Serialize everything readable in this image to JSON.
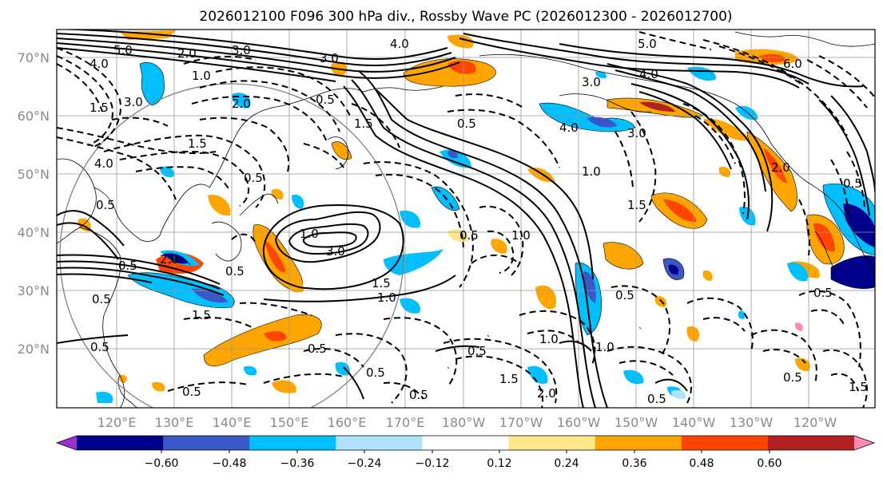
{
  "title": "2026012100 F096 300 hPa div., Rossby Wave PC (2026012300 - 2026012700)",
  "map": {
    "lat_ticks": [
      "70°N",
      "60°N",
      "50°N",
      "40°N",
      "30°N",
      "20°N"
    ],
    "lon_ticks": [
      "120°E",
      "130°E",
      "140°E",
      "150°E",
      "160°E",
      "170°E",
      "180°W",
      "170°W",
      "160°W",
      "150°W",
      "140°W",
      "130°W",
      "120°W"
    ],
    "contour_labels": [
      "5.0",
      "4.0",
      "3.0",
      "2.0",
      "1.0",
      "3.0",
      "4.0",
      "5.0",
      "3.0",
      "4.0",
      "6.0",
      "1.5",
      "4.0",
      "3.0",
      "1.5",
      "2.0",
      "0.5",
      "1.5",
      "4.0",
      "3.0",
      "0.5",
      "2.0",
      "1.0",
      "3.0",
      "1.5",
      "1.0",
      "1.0",
      "1.5",
      "0.5",
      "1.0",
      "0.5",
      "0.5",
      "2.0",
      "0.5",
      "0.5",
      "0.5",
      "0.5",
      "1.5",
      "0.5",
      "1.0",
      "0.5",
      "0.5",
      "1.0",
      "1.5",
      "0.5",
      "2.0",
      "0.5",
      "0.5",
      "1.5",
      "0.5",
      "0.5",
      "0.5",
      "0.5"
    ]
  },
  "colorbar": {
    "ticks": [
      "−0.60",
      "−0.48",
      "−0.36",
      "−0.24",
      "−0.12",
      "0.12",
      "0.24",
      "0.36",
      "0.48",
      "0.60"
    ],
    "colors": [
      "#9932cc",
      "#00008b",
      "#3a57c8",
      "#00bfff",
      "#b0e2ff",
      "#ffffff",
      "#ffe68a",
      "#ffa500",
      "#ff4500",
      "#b22222",
      "#ff8cb4"
    ]
  },
  "colors": {
    "grid": "#999999",
    "circle": "#808080",
    "contour": "#000000"
  }
}
